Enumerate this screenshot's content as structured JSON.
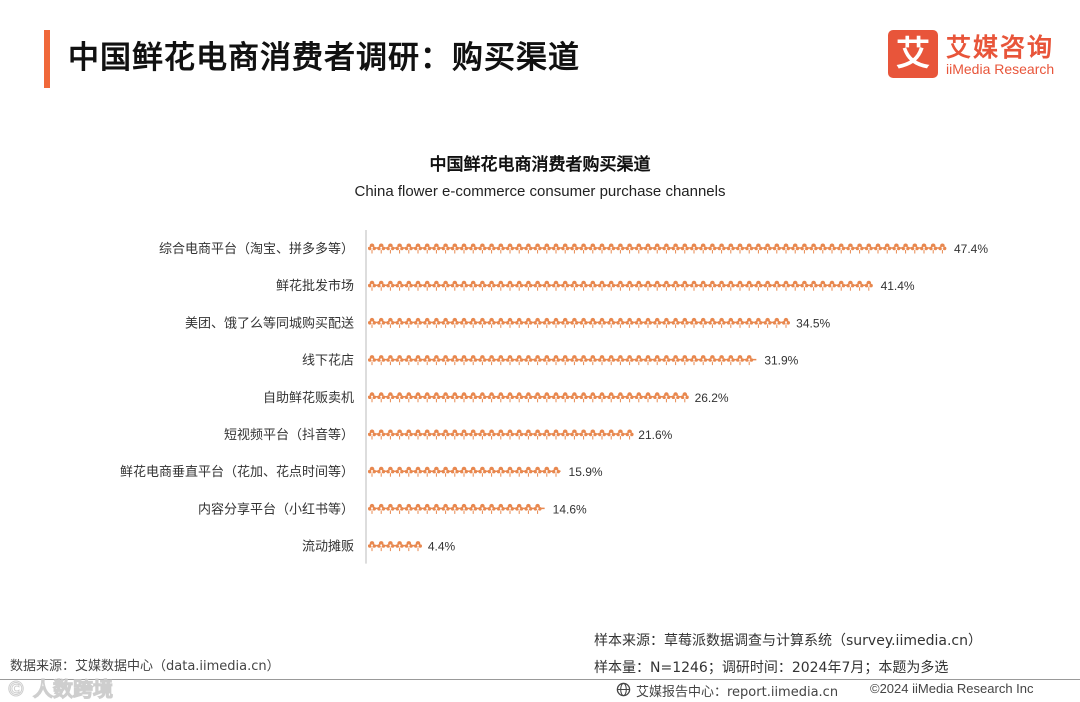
{
  "header": {
    "title": "中国鲜花电商消费者调研：购买渠道"
  },
  "logo": {
    "mark": "艾",
    "name_cn": "艾媒咨询",
    "name_en": "iiMedia Research"
  },
  "chart_data": {
    "type": "bar",
    "orientation": "horizontal",
    "title": "中国鲜花电商消费者购买渠道",
    "subtitle": "China flower e-commerce consumer purchase channels",
    "categories": [
      "综合电商平台（淘宝、拼多多等）",
      "鲜花批发市场",
      "美团、饿了么等同城购买配送",
      "线下花店",
      "自助鲜花贩卖机",
      "短视频平台（抖音等）",
      "鲜花电商垂直平台（花加、花点时间等）",
      "内容分享平台（小红书等）",
      "流动摊贩"
    ],
    "values": [
      47.4,
      41.4,
      34.5,
      31.9,
      26.2,
      21.6,
      15.9,
      14.6,
      4.4
    ],
    "value_labels": [
      "47.4%",
      "41.4%",
      "34.5%",
      "31.9%",
      "26.2%",
      "21.6%",
      "15.9%",
      "14.6%",
      "4.4%"
    ],
    "unit": "%",
    "xlim": [
      0,
      47.4
    ],
    "bar_style": "flower pictograph",
    "bar_color": "#e8884f",
    "grid": false,
    "legend": "none"
  },
  "footer": {
    "sample_source": "样本来源：草莓派数据调查与计算系统（survey.iimedia.cn）",
    "sample_info": "样本量：N=1246；调研时间：2024年7月；本题为多选",
    "data_source": "数据来源：艾媒数据中心（data.iimedia.cn）",
    "watermark": "©  人数跨境",
    "report_center": "艾媒报告中心：report.iimedia.cn",
    "copyright": "©2024  iiMedia Research Inc"
  }
}
